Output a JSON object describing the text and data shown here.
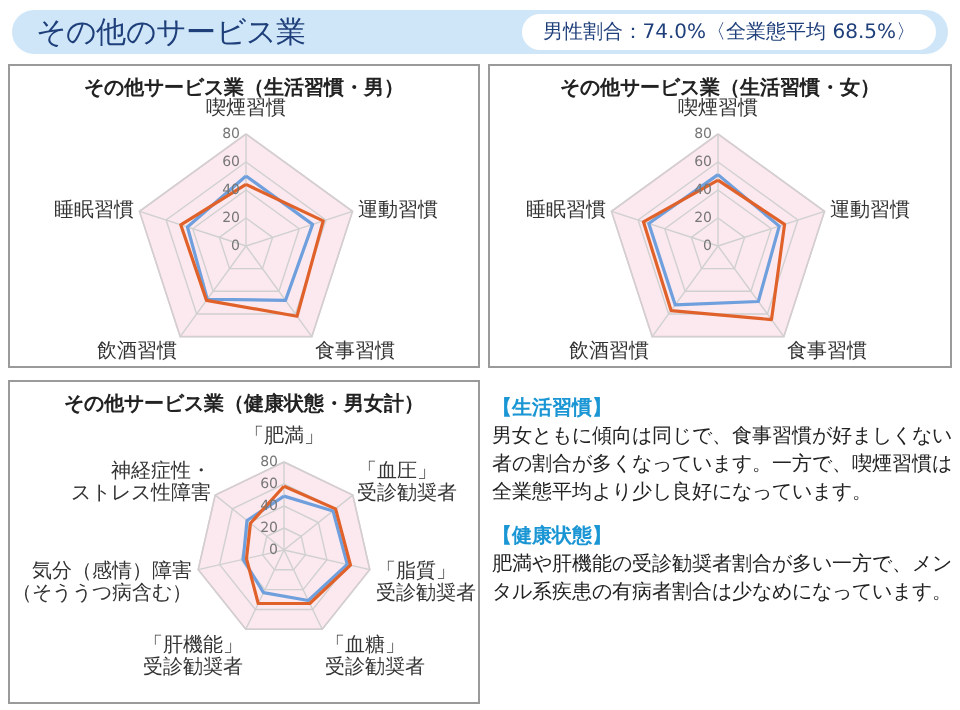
{
  "chart_data": [
    {
      "type": "other",
      "title": "その他のサービス業",
      "subtitle": "男性割合：74.0%〈全業態平均 68.5%〉"
    },
    {
      "type": "radar",
      "title": "その他サービス業（生活習慣・男）",
      "categories": [
        "喫煙習慣",
        "運動習慣",
        "食事習慣",
        "飲酒習慣",
        "睡眠習慣"
      ],
      "ylim": [
        0,
        80
      ],
      "yticks": [
        0,
        20,
        40,
        60,
        80
      ],
      "grid": true,
      "series": [
        {
          "color": "#6f9fdc",
          "values": [
            50,
            50,
            48,
            47,
            44
          ]
        },
        {
          "color": "#e0622a",
          "values": [
            44,
            58,
            62,
            48,
            49
          ]
        }
      ]
    },
    {
      "type": "radar",
      "title": "その他サービス業（生活習慣・女）",
      "categories": [
        "喫煙習慣",
        "運動習慣",
        "食事習慣",
        "飲酒習慣",
        "睡眠習慣"
      ],
      "ylim": [
        0,
        80
      ],
      "yticks": [
        0,
        20,
        40,
        60,
        80
      ],
      "grid": true,
      "series": [
        {
          "color": "#6f9fdc",
          "values": [
            51,
            46,
            49,
            52,
            52
          ]
        },
        {
          "color": "#e0622a",
          "values": [
            47,
            50,
            65,
            57,
            56
          ]
        }
      ]
    },
    {
      "type": "radar",
      "title": "その他サービス業（健康状態・男女計）",
      "categories": [
        "「肥満」",
        "「血圧」受診勧奨者",
        "「脂質」受診勧奨者",
        "「血糖」受診勧奨者",
        "「肝機能」受診勧奨者",
        "気分（感情）障害（そううつ病含む）",
        "神経症性・ストレス性障害"
      ],
      "ylim": [
        0,
        80
      ],
      "yticks": [
        0,
        20,
        40,
        60,
        80
      ],
      "grid": true,
      "series": [
        {
          "color": "#6f9fdc",
          "values": [
            49,
            57,
            59,
            51,
            43,
            38,
            43
          ]
        },
        {
          "color": "#e0622a",
          "values": [
            58,
            60,
            62,
            54,
            54,
            35,
            39
          ]
        }
      ]
    },
    {
      "type": "other",
      "annotations": [
        "【生活習慣】",
        "男女ともに傾向は同じで、食事習慣が好ましくない者の割合が多くなっています。一方で、喫煙習慣は全業態平均より少し良好になっています。",
        "【健康状態】",
        "肥満や肝機能の受診勧奨者割合が多い一方で、メンタル系疾患の有病者割合は少なめになっています。"
      ]
    }
  ]
}
